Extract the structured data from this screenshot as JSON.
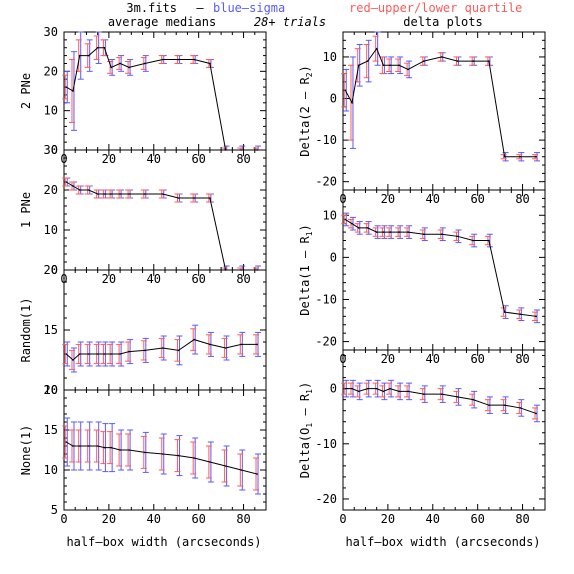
{
  "header": {
    "file": "3m.fits",
    "dash": "–",
    "blue_label": "blue–sigma",
    "red_label": "red–upper/lower quartile",
    "left_title": "average medians",
    "trials": "28+ trials",
    "right_title": "delta plots"
  },
  "colors": {
    "line": "#000000",
    "sigma": "#5a5aff",
    "quartile": "#ff5a5a",
    "axes": "#000000"
  },
  "chart_data": [
    {
      "type": "line",
      "panel": "left-1",
      "ylabel": "2 PNe",
      "ylim": [
        0,
        30
      ],
      "xlim": [
        0,
        90
      ],
      "yticks": [
        0,
        10,
        20,
        30
      ],
      "xticks": [
        0,
        20,
        40,
        60,
        80
      ],
      "show_xticklabels": true,
      "x": [
        1,
        4,
        7,
        11,
        15,
        18,
        21,
        25,
        29,
        36,
        44,
        51,
        58,
        65,
        72,
        79,
        86
      ],
      "y": [
        16,
        15,
        24,
        24,
        26,
        26,
        21,
        22,
        21,
        22,
        23,
        23,
        23,
        22,
        0,
        0,
        0
      ],
      "sigma": [
        4,
        10,
        6,
        4,
        4,
        2,
        2,
        2,
        2,
        2,
        1,
        1,
        1,
        1,
        1,
        1,
        1
      ],
      "quartile": [
        3,
        8,
        4,
        3,
        3,
        2,
        1.5,
        1.5,
        1.5,
        1.5,
        1,
        1,
        1,
        1,
        0.5,
        0.5,
        0.5
      ]
    },
    {
      "type": "line",
      "panel": "left-2",
      "ylabel": "1 PNe",
      "ylim": [
        0,
        30
      ],
      "xlim": [
        0,
        90
      ],
      "yticks": [
        0,
        10,
        20,
        30
      ],
      "xticks": [
        0,
        20,
        40,
        60,
        80
      ],
      "show_xticklabels": true,
      "x": [
        1,
        4,
        7,
        11,
        15,
        18,
        21,
        25,
        29,
        36,
        44,
        51,
        58,
        65,
        72,
        79,
        86
      ],
      "y": [
        22,
        21,
        20,
        20,
        19,
        19,
        19,
        19,
        19,
        19,
        19,
        18,
        18,
        18,
        0,
        0,
        0
      ],
      "sigma": [
        1,
        1,
        1,
        1,
        1,
        1,
        1,
        1,
        1,
        1,
        1,
        1,
        1,
        1,
        1,
        1,
        1
      ],
      "quartile": [
        1,
        1,
        1,
        1,
        1,
        1,
        1,
        1,
        1,
        1,
        1,
        1,
        1,
        1,
        0.5,
        0.5,
        0.5
      ]
    },
    {
      "type": "line",
      "panel": "left-3",
      "ylabel": "Random(1)",
      "ylim": [
        10,
        20
      ],
      "xlim": [
        0,
        90
      ],
      "yticks": [
        10,
        15,
        20
      ],
      "xticks": [
        0,
        20,
        40,
        60,
        80
      ],
      "show_xticklabels": false,
      "x": [
        1,
        4,
        7,
        11,
        15,
        18,
        21,
        25,
        29,
        36,
        44,
        51,
        58,
        65,
        72,
        79,
        86
      ],
      "y": [
        13,
        12.5,
        13,
        13,
        13,
        13,
        13,
        13,
        13.2,
        13.3,
        13.5,
        13.3,
        14.2,
        13.8,
        13.5,
        13.8,
        13.8
      ],
      "sigma": [
        1,
        1,
        1,
        1,
        1,
        1,
        1,
        1,
        1,
        1,
        1,
        1.2,
        1.2,
        1,
        1,
        1,
        1
      ],
      "quartile": [
        0.8,
        0.8,
        0.8,
        0.8,
        0.8,
        0.8,
        0.8,
        0.8,
        0.8,
        0.8,
        0.8,
        0.9,
        0.9,
        0.8,
        0.8,
        0.8,
        0.8
      ]
    },
    {
      "type": "line",
      "panel": "left-4",
      "ylabel": "None(1)",
      "ylim": [
        5,
        20
      ],
      "xlim": [
        0,
        90
      ],
      "yticks": [
        5,
        10,
        15,
        20
      ],
      "xticks": [
        0,
        20,
        40,
        60,
        80
      ],
      "show_xticklabels": true,
      "x": [
        1,
        4,
        7,
        11,
        15,
        18,
        21,
        25,
        29,
        36,
        44,
        51,
        58,
        65,
        72,
        79,
        86
      ],
      "y": [
        13.5,
        13,
        13,
        13,
        13,
        12.8,
        12.8,
        12.5,
        12.5,
        12.2,
        12,
        11.8,
        11.5,
        11,
        10.5,
        10,
        9.5
      ],
      "sigma": [
        3,
        3,
        3,
        3,
        3,
        3,
        3,
        2.5,
        2.5,
        2.5,
        2.5,
        2.5,
        2.5,
        2.5,
        2.5,
        2.5,
        2.5
      ],
      "quartile": [
        2,
        2,
        2,
        2,
        2,
        2,
        2,
        2,
        2,
        2,
        2,
        2,
        2,
        2,
        2,
        2,
        2
      ]
    },
    {
      "type": "line",
      "panel": "right-1",
      "ylabel": "Delta(2 – R",
      "ylabel_sub": "2",
      "ylabel_end": ")",
      "ylim": [
        -22,
        16
      ],
      "xlim": [
        0,
        90
      ],
      "yticks": [
        -20,
        -10,
        0,
        10
      ],
      "xticks": [
        0,
        20,
        40,
        60,
        80
      ],
      "show_xticklabels": true,
      "x": [
        1,
        4,
        7,
        11,
        15,
        18,
        21,
        25,
        29,
        36,
        44,
        51,
        58,
        65,
        72,
        79,
        86
      ],
      "y": [
        2,
        -1,
        8,
        9,
        12,
        8,
        8,
        8,
        7,
        9,
        10,
        9,
        9,
        9,
        -14,
        -14,
        -14
      ],
      "sigma": [
        5,
        11,
        5,
        5,
        4,
        2,
        2,
        2,
        2,
        1,
        1,
        1,
        1,
        1,
        1,
        1,
        1
      ],
      "quartile": [
        4,
        9,
        4,
        4,
        3,
        2,
        1.5,
        1.5,
        1.5,
        1,
        1,
        1,
        1,
        1,
        0.5,
        0.5,
        0.5
      ]
    },
    {
      "type": "line",
      "panel": "right-2",
      "ylabel": "Delta(1 – R",
      "ylabel_sub": "1",
      "ylabel_end": ")",
      "ylim": [
        -22,
        16
      ],
      "xlim": [
        0,
        90
      ],
      "yticks": [
        -20,
        -10,
        0,
        10
      ],
      "xticks": [
        0,
        20,
        40,
        60,
        80
      ],
      "show_xticklabels": true,
      "x": [
        1,
        4,
        7,
        11,
        15,
        18,
        21,
        25,
        29,
        36,
        44,
        51,
        58,
        65,
        72,
        79,
        86
      ],
      "y": [
        9,
        8,
        7,
        7,
        6,
        6,
        6,
        6,
        6,
        5.5,
        5.5,
        5,
        4,
        4,
        -13,
        -13.5,
        -14
      ],
      "sigma": [
        1.5,
        1.5,
        1.5,
        1.5,
        1.5,
        1.5,
        1.5,
        1.5,
        1.5,
        1.5,
        1.5,
        1.5,
        1.5,
        1.5,
        1.5,
        1.5,
        1.5
      ],
      "quartile": [
        1,
        1,
        1,
        1,
        1,
        1,
        1,
        1,
        1,
        1,
        1,
        1,
        1,
        1,
        1,
        1,
        1
      ]
    },
    {
      "type": "line",
      "panel": "right-3",
      "ylabel": "Delta(O",
      "ylabel_sub": "1",
      "ylabel_end": " – R",
      "ylabel_sub2": "1",
      "ylabel_end2": ")",
      "ylim": [
        -22,
        7
      ],
      "xlim": [
        0,
        90
      ],
      "yticks": [
        -20,
        -10,
        0
      ],
      "xticks": [
        0,
        20,
        40,
        60,
        80
      ],
      "show_xticklabels": true,
      "x": [
        1,
        4,
        7,
        11,
        15,
        18,
        21,
        25,
        29,
        36,
        44,
        51,
        58,
        65,
        72,
        79,
        86
      ],
      "y": [
        0,
        0,
        -0.5,
        0,
        0,
        -0.5,
        0,
        -0.5,
        -0.5,
        -1,
        -1,
        -1.5,
        -2,
        -3,
        -3,
        -3.5,
        -4.5
      ],
      "sigma": [
        1.5,
        1.5,
        1.5,
        1.5,
        1.5,
        1.5,
        1.5,
        1.5,
        1.5,
        1.5,
        1.5,
        1.5,
        1.5,
        1.5,
        1.5,
        1.5,
        1.5
      ],
      "quartile": [
        1,
        1,
        1,
        1,
        1,
        1,
        1,
        1,
        1,
        1,
        1,
        1,
        1,
        1,
        1,
        1,
        1
      ]
    }
  ],
  "xlabel": "half–box width (arcseconds)"
}
